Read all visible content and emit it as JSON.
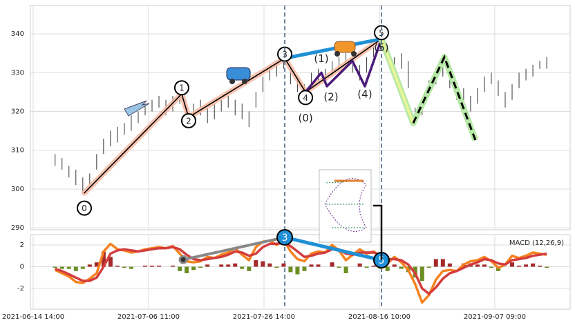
{
  "chart_data": [
    {
      "type": "ohlc",
      "xlim": [
        -2.4,
        465.3
      ],
      "ylim": [
        289.5,
        347.3
      ],
      "yticks": [
        290,
        300,
        310,
        320,
        330,
        340
      ],
      "grid": true,
      "x": [
        19,
        25,
        31,
        37,
        43,
        49,
        55,
        61,
        67,
        73,
        79,
        85,
        91,
        97,
        103,
        109,
        115,
        121,
        127,
        133,
        139,
        145,
        151,
        157,
        163,
        169,
        175,
        181,
        187,
        193,
        199,
        205,
        211,
        217,
        223,
        229,
        235,
        241,
        247,
        253,
        259,
        265,
        271,
        277,
        283,
        289,
        295,
        301,
        307,
        313,
        319,
        325,
        331,
        337,
        343,
        349,
        355,
        361,
        367,
        373,
        379,
        385,
        391,
        397,
        403,
        409,
        415,
        421,
        427,
        433,
        439,
        445
      ],
      "high": [
        309,
        308,
        306,
        305,
        303,
        304,
        309,
        313,
        315,
        316,
        317,
        319,
        320,
        322,
        323,
        324,
        323,
        324,
        325,
        321,
        322,
        323,
        321,
        322,
        323,
        324,
        323,
        322,
        320,
        325,
        329,
        332,
        333,
        335,
        331,
        329,
        327,
        330,
        331,
        331,
        333,
        334,
        335,
        334,
        332,
        334,
        337,
        339,
        337,
        334,
        335,
        333,
        321,
        323,
        328,
        331,
        332,
        330,
        327,
        326,
        324,
        326,
        329,
        330,
        328,
        325,
        327,
        330,
        331,
        332,
        333,
        334
      ],
      "low": [
        306,
        305,
        303,
        301,
        299,
        301,
        305,
        309,
        311,
        312,
        314,
        315,
        317,
        319,
        320,
        321,
        319,
        320,
        322,
        317,
        318,
        319,
        317,
        318,
        320,
        321,
        319,
        318,
        316,
        321,
        325,
        328,
        329,
        331,
        327,
        325,
        323,
        326,
        328,
        327,
        329,
        331,
        332,
        330,
        328,
        330,
        334,
        336,
        333,
        329,
        331,
        326,
        317,
        319,
        324,
        327,
        329,
        326,
        323,
        321,
        320,
        322,
        325,
        327,
        324,
        321,
        323,
        326,
        328,
        329,
        331,
        331
      ],
      "color": "#333333",
      "waves": [
        {
          "label": "0",
          "x": 44.3,
          "y": 299
        },
        {
          "label": "1",
          "x": 128.7,
          "y": 324.5
        },
        {
          "label": "2",
          "x": 134.7,
          "y": 318.5
        },
        {
          "label": "3",
          "x": 218,
          "y": 333.7
        },
        {
          "label": "4",
          "x": 236,
          "y": 325
        },
        {
          "label": "5",
          "x": 301.8,
          "y": 338.7
        }
      ],
      "subwaves": [
        {
          "label": "(0)",
          "x": 236,
          "y": 325
        },
        {
          "label": "(1)",
          "x": 249.7,
          "y": 330
        },
        {
          "label": "(2)",
          "x": 254.5,
          "y": 326.5
        },
        {
          "label": null,
          "x": 276.6,
          "y": 333
        },
        {
          "label": "(4)",
          "x": 287.4,
          "y": 326.5
        },
        {
          "label": "(5)",
          "x": 301.8,
          "y": 338.7
        }
      ],
      "forecast": [
        {
          "x": 301.8,
          "y": 338.7
        },
        {
          "x": 329.3,
          "y": 317
        },
        {
          "x": 356.3,
          "y": 334
        },
        {
          "x": 383.2,
          "y": 312.6
        }
      ],
      "vlines": [
        218,
        301.8
      ]
    },
    {
      "type": "macd",
      "label": "MACD (12,26,9)",
      "xlim": [
        -2.4,
        465.3
      ],
      "ylim": [
        -3.9,
        2.95
      ],
      "yticks": [
        -2,
        0,
        2
      ],
      "grid": true,
      "xticks": [
        {
          "value": 0,
          "label": "2021-06-14 14:00"
        },
        {
          "value": 100,
          "label": "2021-07-06 11:00"
        },
        {
          "value": 200,
          "label": "2021-07-26 14:00"
        },
        {
          "value": 300,
          "label": "2021-08-16 10:00"
        },
        {
          "value": 400,
          "label": "2021-09-07 09:00"
        }
      ],
      "x": [
        19,
        25,
        31,
        37,
        43,
        49,
        55,
        61,
        67,
        73,
        79,
        85,
        91,
        97,
        103,
        109,
        115,
        121,
        127,
        133,
        139,
        145,
        151,
        157,
        163,
        169,
        175,
        181,
        187,
        193,
        199,
        205,
        211,
        217,
        223,
        229,
        235,
        241,
        247,
        253,
        259,
        265,
        271,
        277,
        283,
        289,
        295,
        301,
        307,
        313,
        319,
        325,
        331,
        337,
        343,
        349,
        355,
        361,
        367,
        373,
        379,
        385,
        391,
        397,
        403,
        409,
        415,
        421,
        427,
        433,
        439,
        445
      ],
      "series": [
        {
          "color": "#f58220",
          "values": [
            -0.3,
            -0.6,
            -0.9,
            -1.4,
            -1.5,
            -1.1,
            -0.6,
            1.4,
            2.1,
            1.6,
            1.5,
            1.3,
            1.4,
            1.6,
            1.7,
            1.8,
            1.7,
            1.9,
            1.2,
            0.5,
            0.4,
            0.5,
            0.9,
            0.8,
            1.1,
            1.3,
            1.7,
            1.1,
            0.6,
            1.8,
            2.3,
            2.4,
            2.0,
            2.5,
            1.4,
            0.7,
            0.5,
            1.2,
            1.4,
            1.3,
            2.0,
            1.5,
            0.6,
            1.1,
            1.6,
            1.2,
            1.4,
            0.9,
            0.3,
            0.9,
            0.4,
            -0.3,
            -1.6,
            -3.3,
            -2.6,
            -1.2,
            -0.4,
            -0.3,
            -0.4,
            0.2,
            0.5,
            0.6,
            0.9,
            0.5,
            -0.1,
            0.2,
            1.0,
            0.8,
            1.0,
            1.3,
            1.2,
            1.1
          ]
        },
        {
          "color": "#d43d3d",
          "values": [
            -0.2,
            -0.4,
            -0.7,
            -1.0,
            -1.3,
            -1.3,
            -1.0,
            0.0,
            1.2,
            1.5,
            1.6,
            1.5,
            1.4,
            1.5,
            1.6,
            1.7,
            1.7,
            1.8,
            1.6,
            1.1,
            0.7,
            0.6,
            0.7,
            0.8,
            0.9,
            1.1,
            1.4,
            1.3,
            1.0,
            1.2,
            1.8,
            2.1,
            2.1,
            2.2,
            1.9,
            1.4,
            0.9,
            1.0,
            1.2,
            1.3,
            1.6,
            1.6,
            1.2,
            1.1,
            1.3,
            1.3,
            1.3,
            1.1,
            0.7,
            0.7,
            0.6,
            0.2,
            -0.6,
            -2.0,
            -2.5,
            -1.9,
            -1.1,
            -0.6,
            -0.4,
            -0.1,
            0.2,
            0.4,
            0.7,
            0.6,
            0.3,
            0.2,
            0.6,
            0.7,
            0.8,
            1.0,
            1.1,
            1.2
          ]
        }
      ],
      "histogram": [
        -0.1,
        -0.2,
        -0.2,
        -0.4,
        -0.2,
        0.2,
        0.4,
        1.4,
        0.9,
        0.1,
        -0.1,
        -0.2,
        0,
        0.1,
        0.1,
        0.1,
        0,
        0.1,
        -0.4,
        -0.6,
        -0.3,
        -0.1,
        0.2,
        0,
        0.2,
        0.2,
        0.3,
        -0.2,
        -0.4,
        0.6,
        0.5,
        0.3,
        -0.1,
        0.3,
        -0.5,
        -0.7,
        -0.4,
        0.2,
        0.2,
        0,
        0.4,
        -0.1,
        -0.6,
        0,
        0.3,
        -0.1,
        0.1,
        -0.2,
        -0.4,
        0.2,
        -0.2,
        -0.5,
        -1.0,
        -1.3,
        -0.1,
        0.7,
        0.7,
        0.3,
        0,
        0.3,
        0.3,
        0.2,
        0.2,
        -0.1,
        -0.4,
        0,
        0.4,
        0.1,
        0.2,
        0.3,
        0.1,
        -0.1
      ],
      "hist_colors": [
        "#a52a2a",
        "#6b8e23"
      ],
      "points": [
        {
          "label": "3",
          "x": 218,
          "y": 2.7
        },
        {
          "label": "5",
          "x": 301.8,
          "y": 0.6
        }
      ],
      "start": {
        "x": 130,
        "y": 0.65
      }
    }
  ]
}
